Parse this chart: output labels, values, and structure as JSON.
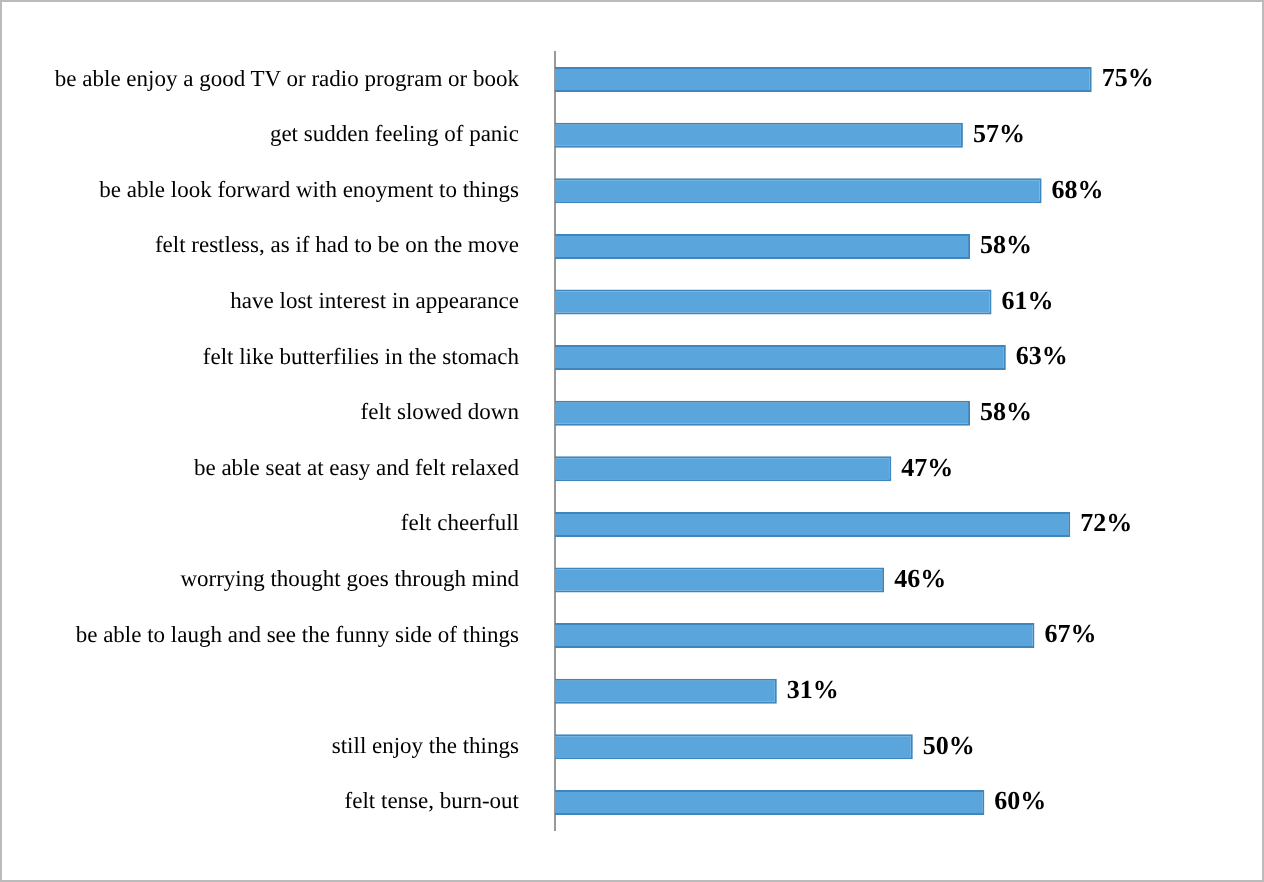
{
  "chart_data": {
    "type": "bar",
    "orientation": "horizontal",
    "categories": [
      "be able enjoy a good TV or radio program or book",
      "get sudden feeling of panic",
      "be able look forward with enoyment to things",
      "felt restless, as if had to be on the move",
      "have lost interest in appearance",
      "felt like butterfilies in the stomach",
      "felt slowed down",
      "be able seat at easy and felt relaxed",
      "felt cheerfull",
      "worrying thought goes through mind",
      "be able to laugh and see the funny side of things",
      null,
      "still enjoy the things",
      "felt tense, burn-out"
    ],
    "values": [
      75,
      57,
      68,
      58,
      61,
      63,
      58,
      47,
      72,
      46,
      67,
      31,
      50,
      60
    ],
    "value_labels": [
      "75%",
      "57%",
      "68%",
      "58%",
      "61%",
      "63%",
      "58%",
      "47%",
      "72%",
      "46%",
      "67%",
      "31%",
      "50%",
      "60%"
    ],
    "color": "#5aa6dc",
    "grid": false,
    "legend": false,
    "tick_labels": "y"
  }
}
